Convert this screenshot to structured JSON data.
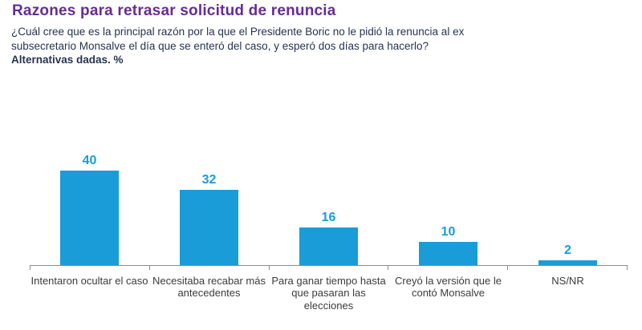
{
  "header": {
    "title": "Razones para retrasar solicitud de renuncia",
    "question": "¿Cuál cree que es la principal razón por la que el Presidente Boric no le pidió la renuncia al ex subsecretario Monsalve el día que se enteró del caso, y esperó dos días para hacerlo?",
    "note": "Alternativas dadas. %"
  },
  "colors": {
    "title": "#662d91",
    "body_text": "#273350",
    "bar": "#1a9cd8",
    "value_label": "#1a9cd8",
    "axis": "#8c8c8c",
    "category_label": "#3b3b3b",
    "background": "#ffffff"
  },
  "chart_data": {
    "type": "bar",
    "title": "Razones para retrasar solicitud de renuncia",
    "categories": [
      "Intentaron ocultar el caso",
      "Necesitaba recabar más antecedentes",
      "Para ganar tiempo hasta que pasaran las elecciones",
      "Creyó la versión que le contó Monsalve",
      "NS/NR"
    ],
    "values": [
      40,
      32,
      16,
      10,
      2
    ],
    "unit": "%",
    "xlabel": "",
    "ylabel": "",
    "ylim": [
      0,
      45
    ],
    "grid": false,
    "legend": false,
    "value_labels_shown": true,
    "orientation": "vertical"
  }
}
